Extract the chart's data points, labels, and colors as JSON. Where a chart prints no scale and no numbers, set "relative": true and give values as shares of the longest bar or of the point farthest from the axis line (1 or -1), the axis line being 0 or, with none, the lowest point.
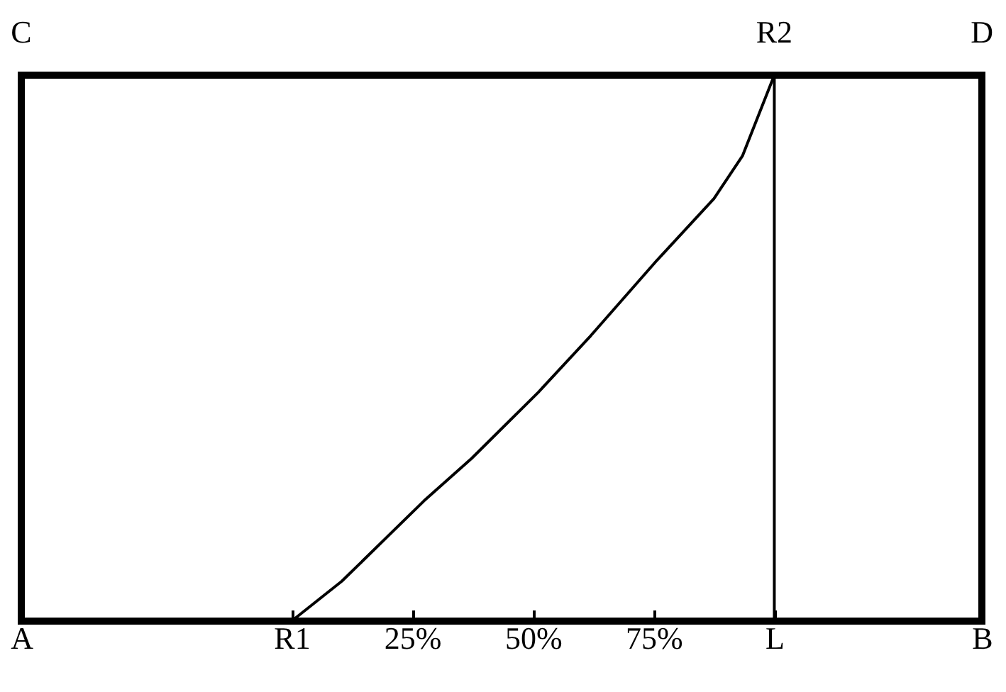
{
  "chart_data": {
    "type": "line",
    "relative": true,
    "marker": "none",
    "line_style": "solid",
    "x": [
      0,
      10.4,
      27.4,
      37.3,
      51.1,
      62,
      75.7,
      87.5,
      93.4,
      100
    ],
    "series": [
      {
        "color": "#000000",
        "values": [
          0,
          0.073,
          0.22,
          0.298,
          0.419,
          0.523,
          0.661,
          0.774,
          0.852,
          1
        ]
      }
    ],
    "xlim": [
      -56,
      143
    ],
    "xticks": [
      {
        "value": -56,
        "label": "A"
      },
      {
        "value": 0,
        "label": "R1"
      },
      {
        "value": 25,
        "label": "25%"
      },
      {
        "value": 50,
        "label": "50%"
      },
      {
        "value": 75,
        "label": "75%"
      },
      {
        "value": 100,
        "label": "L"
      },
      {
        "value": 143,
        "label": "B"
      }
    ],
    "annotations": [
      "C",
      {
        "text": "R2",
        "x": 100,
        "y": 1
      },
      "D"
    ],
    "ref_lines": [
      {
        "axis": "x",
        "value": 100,
        "color": "#000000"
      }
    ]
  }
}
